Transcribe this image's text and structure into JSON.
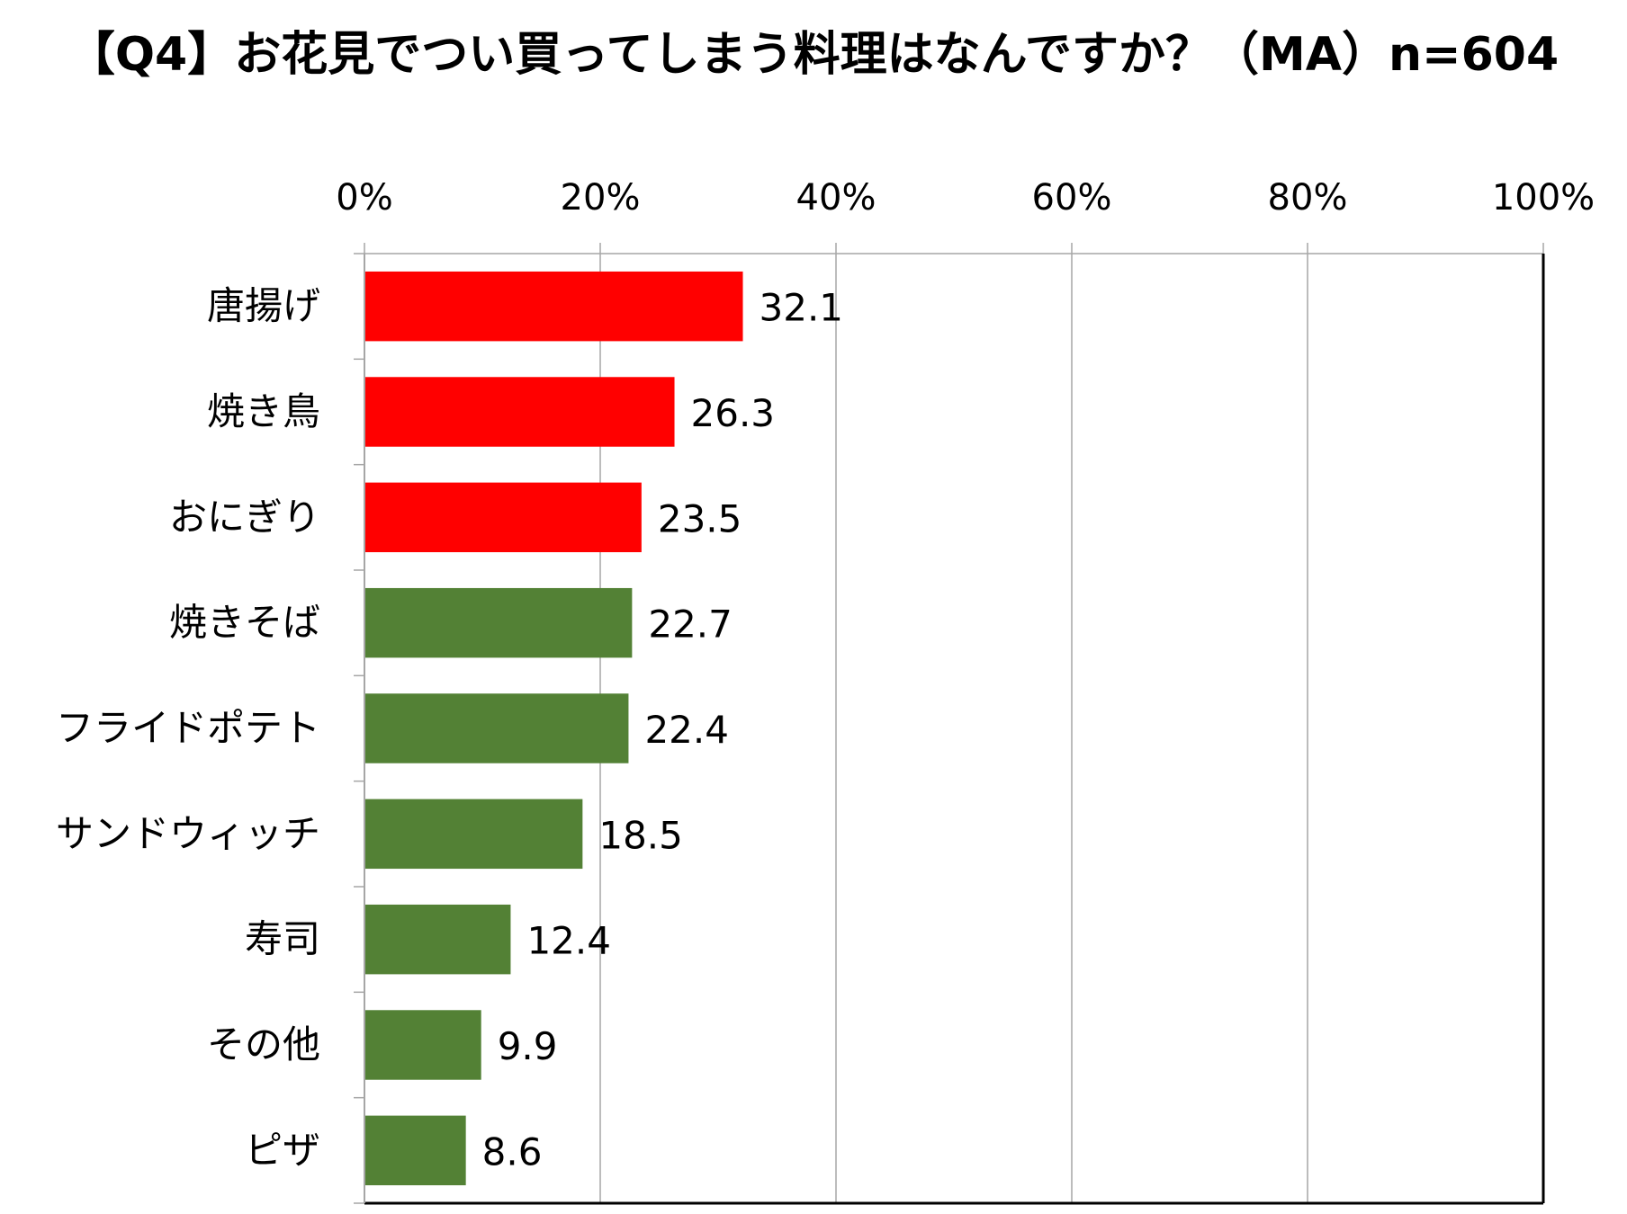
{
  "chart_data": {
    "type": "bar",
    "orientation": "horizontal",
    "title": "【Q4】お花見でつい買ってしまう料理はなんですか？（MA）n=604",
    "categories": [
      "唐揚げ",
      "焼き鳥",
      "おにぎり",
      "焼きそば",
      "フライドポテト",
      "サンドウィッチ",
      "寿司",
      "その他",
      "ピザ"
    ],
    "values": [
      32.1,
      26.3,
      23.5,
      22.7,
      22.4,
      18.5,
      12.4,
      9.9,
      8.6
    ],
    "value_labels": [
      "32.1",
      "26.3",
      "23.5",
      "22.7",
      "22.4",
      "18.5",
      "12.4",
      "9.9",
      "8.6"
    ],
    "bar_colors": [
      "#ff0000",
      "#ff0000",
      "#ff0000",
      "#538135",
      "#538135",
      "#538135",
      "#538135",
      "#538135",
      "#538135"
    ],
    "xlim": [
      0,
      100
    ],
    "x_ticks": [
      0,
      20,
      40,
      60,
      80,
      100
    ],
    "x_tick_labels": [
      "0%",
      "20%",
      "40%",
      "60%",
      "80%",
      "100%"
    ],
    "x_axis_position": "top",
    "grid": true,
    "xlabel": "",
    "ylabel": "",
    "legend": "none"
  },
  "colors": {
    "highlight": "#ff0000",
    "base": "#538135",
    "gridline": "#a6a6a6",
    "axis": "#000000"
  }
}
